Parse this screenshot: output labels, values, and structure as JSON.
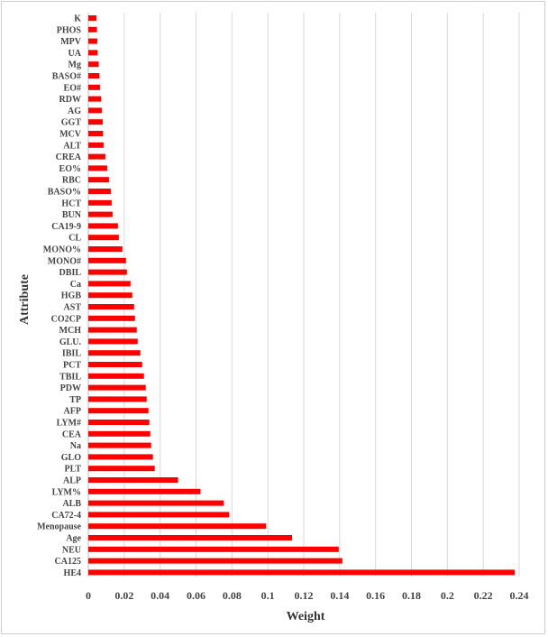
{
  "chart_data": {
    "type": "bar",
    "orientation": "horizontal",
    "xlabel": "Weight",
    "ylabel": "Attribute",
    "xlim": [
      0,
      0.24
    ],
    "xticks": [
      0,
      0.02,
      0.04,
      0.06,
      0.08,
      0.1,
      0.12,
      0.14,
      0.16,
      0.18,
      0.2,
      0.22,
      0.24
    ],
    "xtick_labels": [
      "0",
      "0.02",
      "0.04",
      "0.06",
      "0.08",
      "0.1",
      "0.12",
      "0.14",
      "0.16",
      "0.18",
      "0.2",
      "0.22",
      "0.24"
    ],
    "grid": "vertical",
    "bar_color": "#ff0000",
    "categories": [
      "K",
      "PHOS",
      "MPV",
      "UA",
      "Mg",
      "BASO#",
      "EO#",
      "RDW",
      "AG",
      "GGT",
      "MCV",
      "ALT",
      "CREA",
      "EO%",
      "RBC",
      "BASO%",
      "HCT",
      "BUN",
      "CA19-9",
      "CL",
      "MONO%",
      "MONO#",
      "DBIL",
      "Ca",
      "HGB",
      "AST",
      "CO2CP",
      "MCH",
      "GLU.",
      "IBIL",
      "PCT",
      "TBIL",
      "PDW",
      "TP",
      "AFP",
      "LYM#",
      "CEA",
      "Na",
      "GLO",
      "PLT",
      "ALP",
      "LYM%",
      "ALB",
      "CA72-4",
      "Menopause",
      "Age",
      "NEU",
      "CA125",
      "HE4"
    ],
    "values": [
      0.0045,
      0.0048,
      0.005,
      0.0052,
      0.0058,
      0.0062,
      0.0065,
      0.0072,
      0.0075,
      0.008,
      0.0082,
      0.0085,
      0.0095,
      0.0105,
      0.0115,
      0.0125,
      0.013,
      0.0135,
      0.0165,
      0.017,
      0.019,
      0.021,
      0.0215,
      0.0235,
      0.0245,
      0.0255,
      0.026,
      0.027,
      0.0275,
      0.029,
      0.03,
      0.031,
      0.032,
      0.0325,
      0.0335,
      0.034,
      0.0345,
      0.035,
      0.036,
      0.037,
      0.05,
      0.0625,
      0.0755,
      0.0785,
      0.099,
      0.1135,
      0.1395,
      0.1415,
      0.2375
    ]
  }
}
